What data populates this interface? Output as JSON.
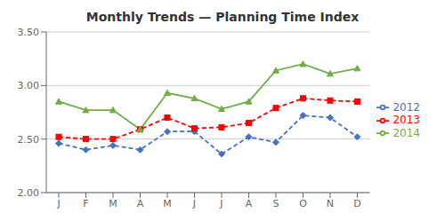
{
  "chart_data": {
    "type": "line",
    "title": "Monthly Trends — Planning Time Index",
    "categories": [
      "J",
      "F",
      "M",
      "A",
      "M",
      "J",
      "J",
      "A",
      "S",
      "O",
      "N",
      "D"
    ],
    "series": [
      {
        "name": "2012",
        "color": "#4472C4",
        "marker": "diamond",
        "line_style": "dashed",
        "values": [
          2.46,
          2.4,
          2.44,
          2.4,
          2.57,
          2.57,
          2.36,
          2.52,
          2.47,
          2.72,
          2.7,
          2.52
        ]
      },
      {
        "name": "2013",
        "color": "#FF0000",
        "marker": "square",
        "line_style": "dashed",
        "values": [
          2.52,
          2.5,
          2.5,
          2.59,
          2.7,
          2.6,
          2.61,
          2.65,
          2.79,
          2.88,
          2.86,
          2.85
        ]
      },
      {
        "name": "2014",
        "color": "#70AD47",
        "marker": "triangle",
        "line_style": "solid",
        "values": [
          2.85,
          2.77,
          2.77,
          2.59,
          2.93,
          2.88,
          2.78,
          2.85,
          3.14,
          3.2,
          3.11,
          3.16
        ]
      }
    ],
    "ylim": [
      2.0,
      3.5
    ],
    "yticks": [
      {
        "value": 2.0,
        "label": "2.00"
      },
      {
        "value": 2.5,
        "label": "2.50"
      },
      {
        "value": 3.0,
        "label": "3.00"
      },
      {
        "value": 3.5,
        "label": "3.50"
      }
    ],
    "grid": true,
    "legend": "right"
  }
}
